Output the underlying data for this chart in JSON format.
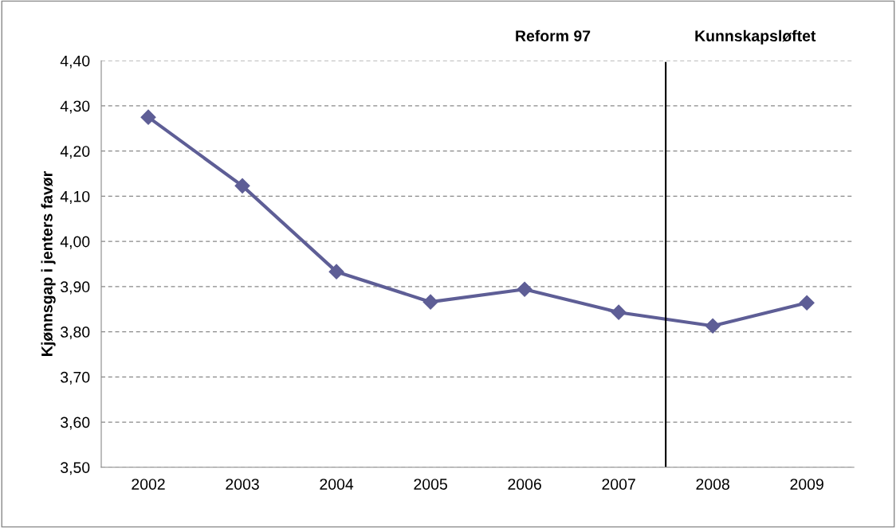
{
  "chart_data": {
    "type": "line",
    "ylabel": "Kjønnsgap i jenters favør",
    "x": [
      2002,
      2003,
      2004,
      2005,
      2006,
      2007,
      2008,
      2009
    ],
    "series": [
      {
        "color": "#5e5e96",
        "values": [
          4.275,
          4.123,
          3.933,
          3.866,
          3.894,
          3.843,
          3.813,
          3.864
        ]
      }
    ],
    "xlim": [
      2001.5,
      2009.5
    ],
    "xticks": [
      2002,
      2003,
      2004,
      2005,
      2006,
      2007,
      2008,
      2009
    ],
    "ylim": [
      3.5,
      4.4
    ],
    "yticks": [
      {
        "value": 3.5,
        "label": "3,50"
      },
      {
        "value": 3.6,
        "label": "3,60"
      },
      {
        "value": 3.7,
        "label": "3,70"
      },
      {
        "value": 3.8,
        "label": "3,80"
      },
      {
        "value": 3.9,
        "label": "3,90"
      },
      {
        "value": 4.0,
        "label": "4,00"
      },
      {
        "value": 4.1,
        "label": "4,10"
      },
      {
        "value": 4.2,
        "label": "4,20"
      },
      {
        "value": 4.3,
        "label": "4,30"
      },
      {
        "value": 4.4,
        "label": "4,40"
      }
    ],
    "ref_lines": [
      {
        "axis": "x",
        "value": 2007.5,
        "color": "#000000"
      }
    ],
    "annotations": [
      "Reform 97",
      "Kunnskapsløftet"
    ],
    "grid": "y",
    "marker": "diamond",
    "line_style": "solid"
  }
}
